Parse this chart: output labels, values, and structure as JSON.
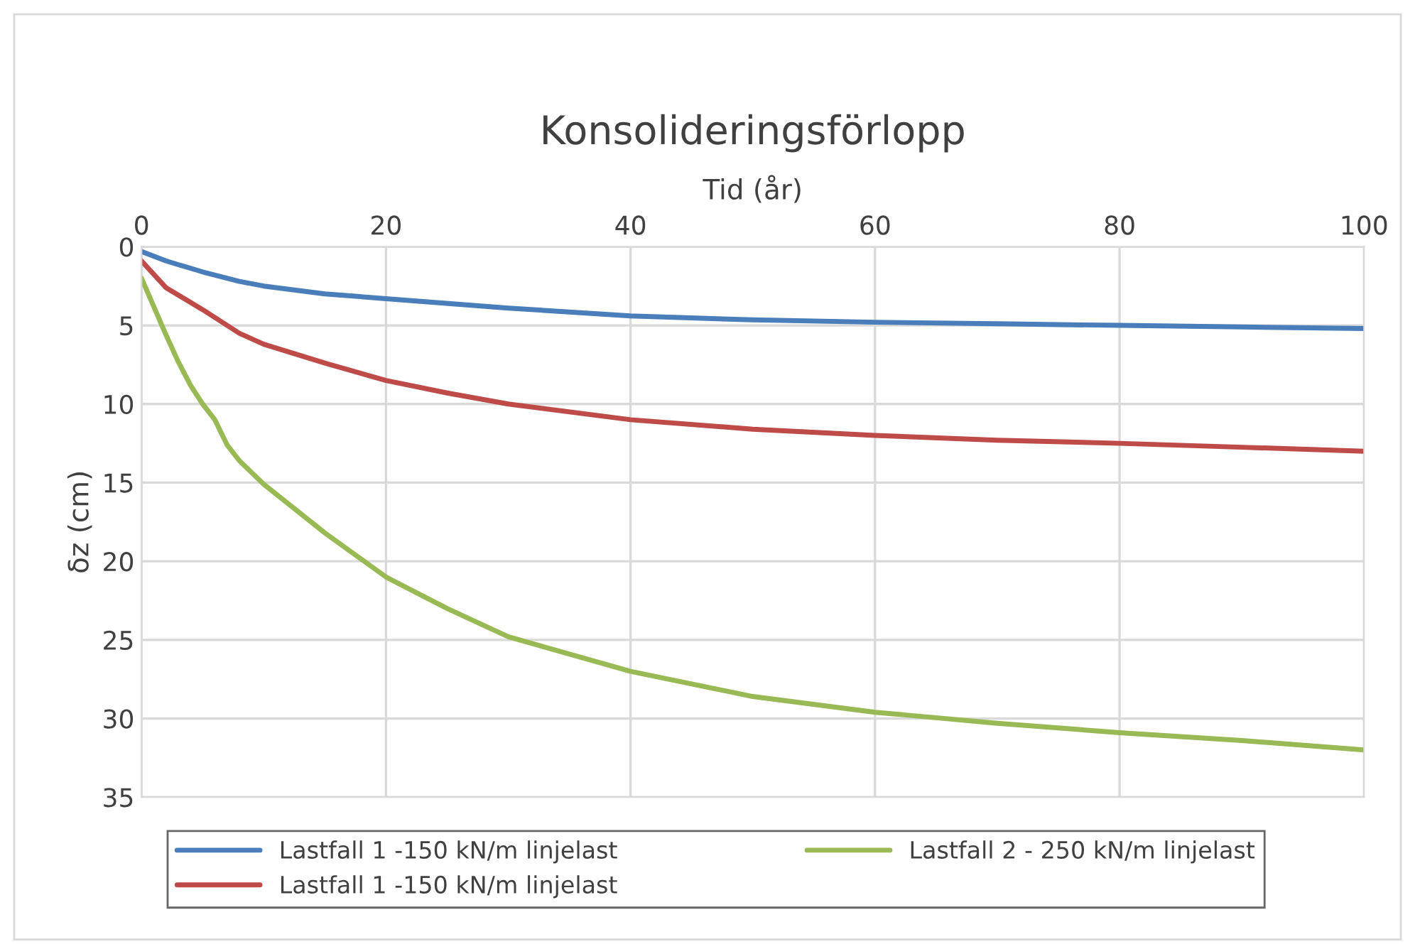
{
  "chart_data": {
    "type": "line",
    "title": "Konsolideringsförlopp",
    "xlabel": "Tid (år)",
    "ylabel": "δz (cm)",
    "xlim": [
      0,
      100
    ],
    "xticks": [
      0,
      20,
      40,
      60,
      80,
      100
    ],
    "ylim": [
      35,
      0
    ],
    "yticks": [
      0,
      5,
      10,
      15,
      20,
      25,
      30,
      35
    ],
    "grid": true,
    "legend": "bottom",
    "marker": "none",
    "line_style": "solid",
    "series": [
      {
        "name": "Lastfall 1 -150 kN/m linjelast",
        "color": "#4a7ebb",
        "x": [
          0,
          2,
          5,
          8,
          10,
          15,
          20,
          30,
          40,
          50,
          60,
          70,
          80,
          90,
          100
        ],
        "values": [
          0.3,
          0.9,
          1.6,
          2.2,
          2.5,
          3.0,
          3.3,
          3.9,
          4.4,
          4.65,
          4.8,
          4.9,
          5.0,
          5.1,
          5.2
        ]
      },
      {
        "name": "Lastfall 1 -150 kN/m linjelast",
        "color": "#be4b48",
        "x": [
          0,
          2,
          5,
          8,
          10,
          15,
          20,
          25,
          30,
          40,
          50,
          60,
          70,
          80,
          90,
          100
        ],
        "values": [
          0.9,
          2.6,
          4.0,
          5.5,
          6.2,
          7.4,
          8.5,
          9.3,
          10.0,
          11.0,
          11.6,
          12.0,
          12.3,
          12.5,
          12.75,
          13.0
        ]
      },
      {
        "name": "Lastfall 2 - 250 kN/m linjelast",
        "color": "#98b954",
        "x": [
          0,
          1,
          2,
          3,
          4,
          5,
          6,
          7,
          8,
          10,
          15,
          20,
          25,
          30,
          40,
          50,
          60,
          70,
          80,
          90,
          100
        ],
        "values": [
          2.0,
          3.8,
          5.6,
          7.3,
          8.8,
          10.0,
          11.0,
          12.6,
          13.6,
          15.1,
          18.2,
          21.0,
          23.0,
          24.8,
          27.0,
          28.6,
          29.6,
          30.3,
          30.9,
          31.4,
          32.0
        ]
      }
    ]
  }
}
